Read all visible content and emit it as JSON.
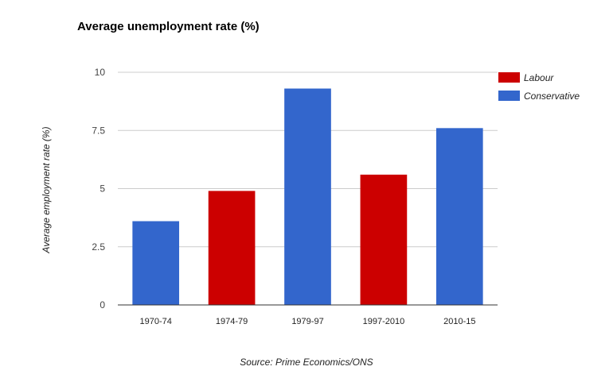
{
  "chart_data": {
    "type": "bar",
    "title": "Average unemployment rate (%)",
    "ylabel": "Average employment rate (%)",
    "xlabel": "",
    "categories": [
      "1970-74",
      "1974-79",
      "1979-97",
      "1997-2010",
      "2010-15"
    ],
    "values": [
      3.6,
      4.9,
      9.3,
      5.6,
      7.6
    ],
    "bar_party": [
      "Conservative",
      "Labour",
      "Conservative",
      "Labour",
      "Conservative"
    ],
    "ylim": [
      0,
      10
    ],
    "yticks": [
      0,
      2.5,
      5,
      7.5,
      10
    ],
    "ytick_labels": [
      "0",
      "2.5",
      "5",
      "7.5",
      "10"
    ],
    "grid": true,
    "legend_position": "top-right",
    "legend": [
      {
        "label": "Labour",
        "color": "#cc0000"
      },
      {
        "label": "Conservative",
        "color": "#3366cc"
      }
    ],
    "colors": {
      "Labour": "#cc0000",
      "Conservative": "#3366cc"
    }
  },
  "source": "Source: Prime Economics/ONS"
}
